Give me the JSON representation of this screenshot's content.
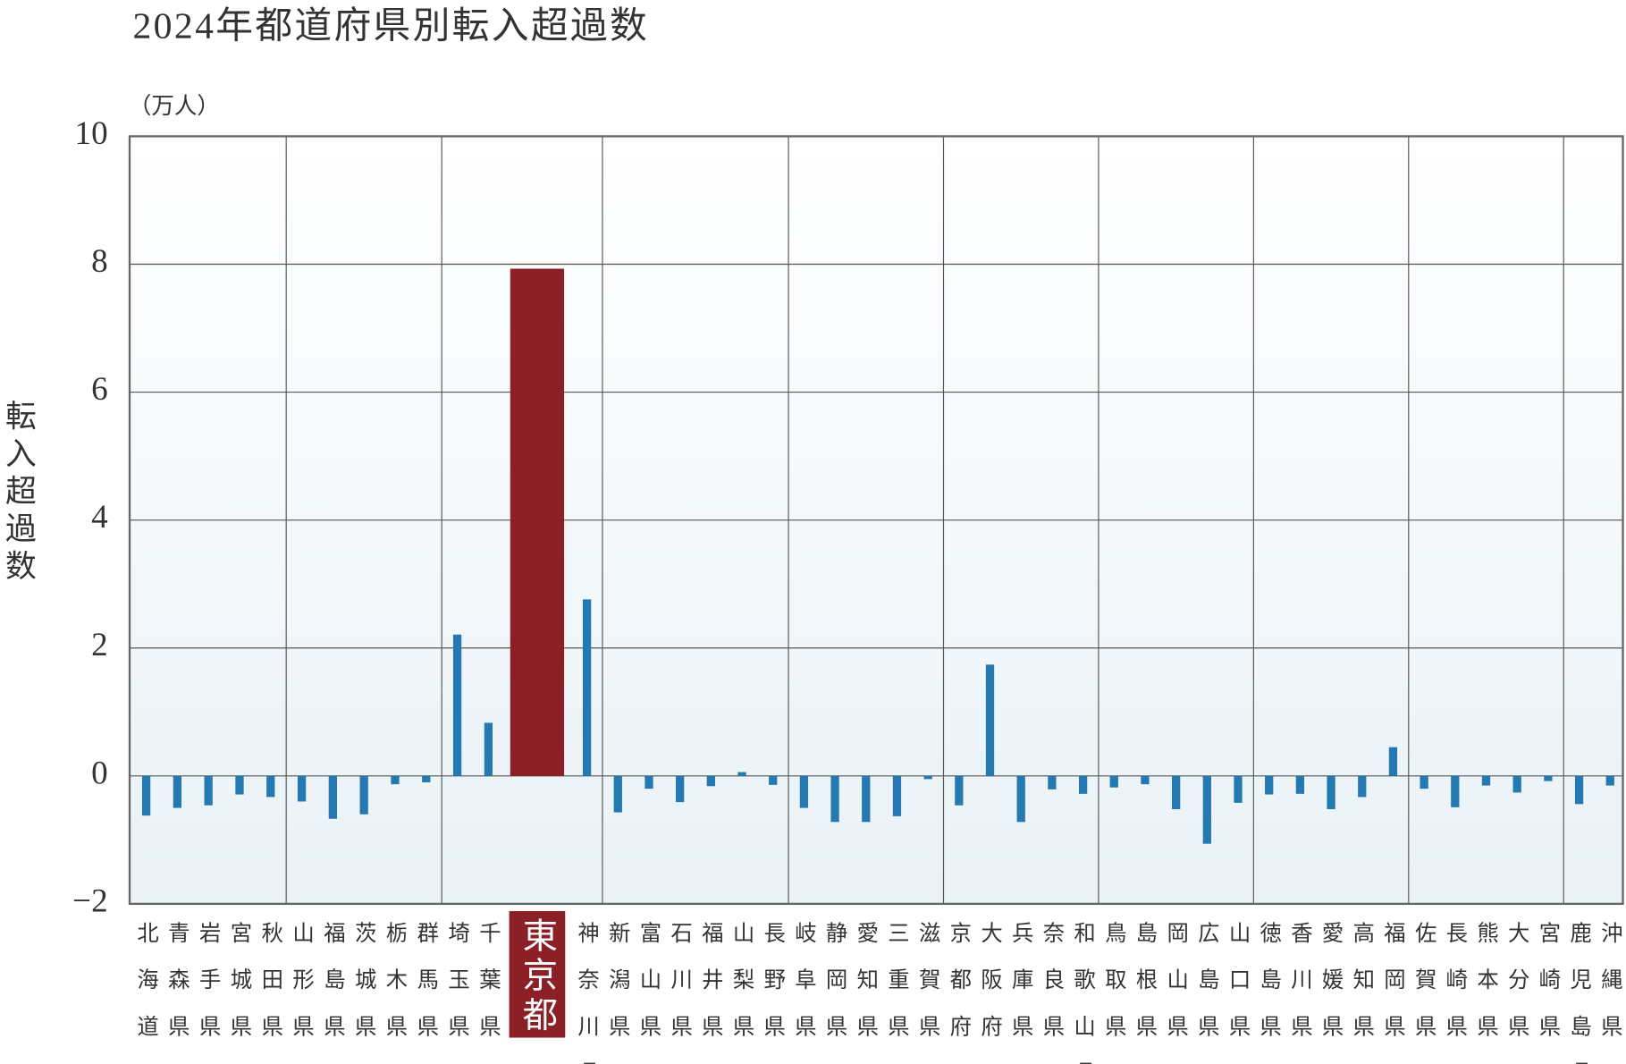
{
  "chart_data": {
    "type": "bar",
    "title": "2024年都道府県別転入超過数",
    "unit_label": "（万人）",
    "y_label": "転入超過数",
    "categories": [
      "北海道",
      "青森県",
      "岩手県",
      "宮城県",
      "秋田県",
      "山形県",
      "福島県",
      "茨城県",
      "栃木県",
      "群馬県",
      "埼玉県",
      "千葉県",
      "東京都",
      "神奈川県",
      "新潟県",
      "富山県",
      "石川県",
      "福井県",
      "山梨県",
      "長野県",
      "岐阜県",
      "静岡県",
      "愛知県",
      "三重県",
      "滋賀県",
      "京都府",
      "大阪府",
      "兵庫県",
      "奈良県",
      "和歌山県",
      "鳥取県",
      "島根県",
      "岡山県",
      "広島県",
      "山口県",
      "徳島県",
      "香川県",
      "愛媛県",
      "高知県",
      "福岡県",
      "佐賀県",
      "長崎県",
      "熊本県",
      "大分県",
      "宮崎県",
      "鹿児島県",
      "沖縄県"
    ],
    "values": [
      -0.62,
      -0.5,
      -0.46,
      -0.29,
      -0.33,
      -0.4,
      -0.67,
      -0.6,
      -0.13,
      -0.1,
      2.21,
      0.83,
      7.93,
      2.76,
      -0.57,
      -0.2,
      -0.41,
      -0.16,
      0.06,
      -0.14,
      -0.5,
      -0.72,
      -0.72,
      -0.63,
      -0.05,
      -0.46,
      1.74,
      -0.72,
      -0.21,
      -0.28,
      -0.18,
      -0.13,
      -0.52,
      -1.06,
      -0.42,
      -0.29,
      -0.28,
      -0.52,
      -0.33,
      0.45,
      -0.2,
      -0.49,
      -0.15,
      -0.26,
      -0.08,
      -0.44,
      -0.15
    ],
    "color": "#2479b0",
    "highlight_color": "#8b2027",
    "highlight_index": 12,
    "ylim": [
      -2,
      10
    ],
    "yticks": [
      {
        "value": -2,
        "label": "−2"
      },
      0,
      2,
      4,
      6,
      8,
      10
    ],
    "grid": true
  }
}
